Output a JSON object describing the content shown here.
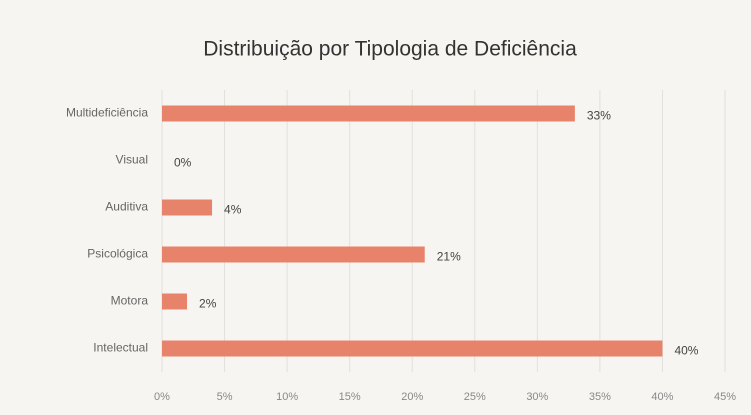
{
  "chart_data": {
    "type": "bar",
    "orientation": "horizontal",
    "title": "Distribuição por Tipologia de Deficiência",
    "categories": [
      "Multideficiência",
      "Visual",
      "Auditiva",
      "Psicológica",
      "Motora",
      "Intelectual"
    ],
    "values": [
      33,
      0,
      4,
      21,
      2,
      40
    ],
    "value_labels": [
      "33%",
      "0%",
      "4%",
      "21%",
      "2%",
      "40%"
    ],
    "color": "#e8836b",
    "xlim": [
      0,
      45
    ],
    "xticks": [
      {
        "value": 0,
        "label": "0%"
      },
      {
        "value": 5,
        "label": "5%"
      },
      {
        "value": 10,
        "label": "10%"
      },
      {
        "value": 15,
        "label": "15%"
      },
      {
        "value": 20,
        "label": "20%"
      },
      {
        "value": 25,
        "label": "25%"
      },
      {
        "value": 30,
        "label": "30%"
      },
      {
        "value": 35,
        "label": "35%"
      },
      {
        "value": 40,
        "label": "40%"
      },
      {
        "value": 45,
        "label": "45%"
      }
    ],
    "grid": true
  }
}
